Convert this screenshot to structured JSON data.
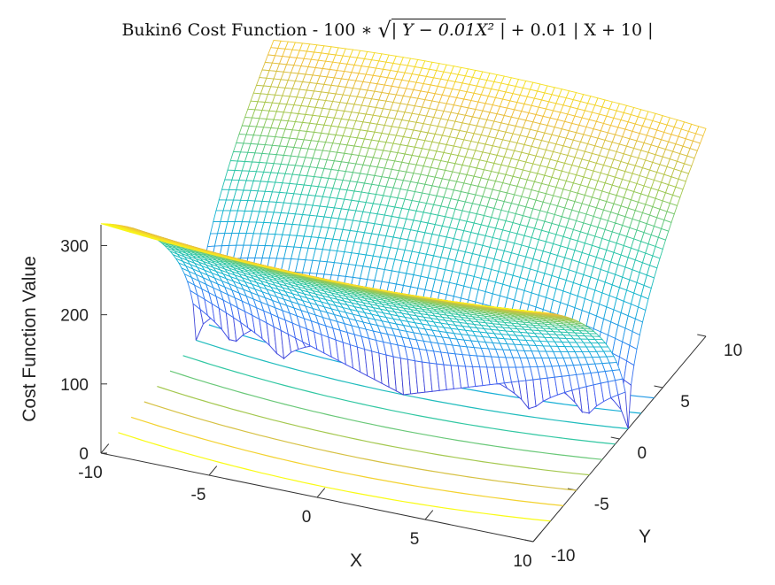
{
  "title": {
    "prefix": "Bukin6 Cost Function - 100 ∗ ",
    "sqrt_symbol": "√",
    "radicand": "| Y − 0.01X² |",
    "suffix": " + 0.01 | X + 10 |"
  },
  "chart_data": {
    "type": "surface",
    "title": "Bukin6 Cost Function - 100 ∗ √| Y − 0.01X² | + 0.01 | X + 10 |",
    "xlabel": "X",
    "ylabel": "Y",
    "zlabel": "Cost Function Value",
    "xlim": [
      -10,
      10
    ],
    "ylim": [
      -10,
      10
    ],
    "zlim": [
      0,
      330
    ],
    "xticks": [
      -10,
      -5,
      0,
      5,
      10
    ],
    "yticks": [
      -10,
      -5,
      0,
      5,
      10
    ],
    "zticks": [
      0,
      100,
      200,
      300
    ],
    "function": "100*sqrt(|Y - 0.01*X^2|) + 0.01*|X + 10|",
    "grid_points": 60,
    "contour_lines_on_floor": true,
    "colormap": "parula",
    "colors": {
      "low": "#3e26a8",
      "mid": "#1fb8b2",
      "high": "#f9fb15"
    }
  }
}
